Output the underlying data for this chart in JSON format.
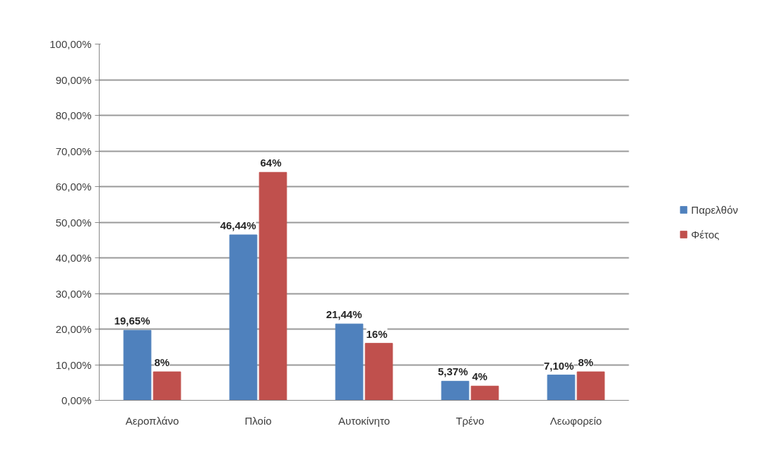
{
  "chart_data": {
    "type": "bar",
    "categories": [
      "Αεροπλάνο",
      "Πλοίο",
      "Αυτοκίνητο",
      "Τρένο",
      "Λεωφορείο"
    ],
    "series": [
      {
        "name": "Παρελθόν",
        "color": "#4f81bd",
        "values": [
          19.65,
          46.44,
          21.44,
          5.37,
          7.1
        ],
        "value_labels": [
          "19,65%",
          "46,44%",
          "21,44%",
          "5,37%",
          "7,10%"
        ]
      },
      {
        "name": "Φέτος",
        "color": "#c0504d",
        "values": [
          8,
          64,
          16,
          4,
          8
        ],
        "value_labels": [
          "8%",
          "64%",
          "16%",
          "4%",
          "8%"
        ]
      }
    ],
    "ylim": [
      0,
      100
    ],
    "yticks": [
      {
        "value": 0,
        "label": "0,00%"
      },
      {
        "value": 10,
        "label": "10,00%"
      },
      {
        "value": 20,
        "label": "20,00%"
      },
      {
        "value": 30,
        "label": "30,00%"
      },
      {
        "value": 40,
        "label": "40,00%"
      },
      {
        "value": 50,
        "label": "50,00%"
      },
      {
        "value": 60,
        "label": "60,00%"
      },
      {
        "value": 70,
        "label": "70,00%"
      },
      {
        "value": 80,
        "label": "80,00%"
      },
      {
        "value": 90,
        "label": "90,00%"
      },
      {
        "value": 100,
        "label": "100,00%"
      }
    ],
    "grid": "y",
    "legend": "right"
  }
}
